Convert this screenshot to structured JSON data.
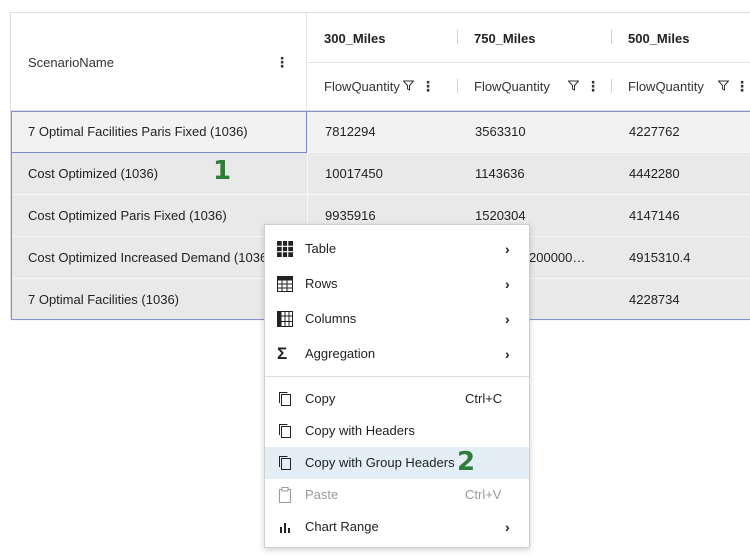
{
  "grid": {
    "name_header": "ScenarioName",
    "groups": [
      "300_Miles",
      "750_Miles",
      "500_Miles"
    ],
    "sub_header": "FlowQuantity",
    "rows": [
      [
        "7 Optimal Facilities Paris Fixed (1036)",
        "7812294",
        "3563310",
        "4227762"
      ],
      [
        "Cost Optimized (1036)",
        "10017450",
        "1143636",
        "4442280"
      ],
      [
        "Cost Optimized Paris Fixed (1036)",
        "9935916",
        "1520304",
        "4147146"
      ],
      [
        "Cost Optimized Increased Demand (1036)",
        "",
        "200000…",
        "4915310.4"
      ],
      [
        "7 Optimal Facilities (1036)",
        "",
        "",
        "4228734"
      ]
    ]
  },
  "badges": {
    "one": "1",
    "two": "2"
  },
  "context_menu": {
    "items": [
      {
        "label": "Table",
        "icon": "table-icon",
        "submenu": true
      },
      {
        "label": "Rows",
        "icon": "rows-icon",
        "submenu": true
      },
      {
        "label": "Columns",
        "icon": "columns-icon",
        "submenu": true
      },
      {
        "label": "Aggregation",
        "icon": "sigma-icon",
        "submenu": true
      },
      {
        "label": "Copy",
        "icon": "copy-icon",
        "shortcut": "Ctrl+C"
      },
      {
        "label": "Copy with Headers",
        "icon": "copy-icon"
      },
      {
        "label": "Copy with Group Headers",
        "icon": "copy-icon",
        "highlighted": true
      },
      {
        "label": "Paste",
        "icon": "paste-icon",
        "shortcut": "Ctrl+V",
        "disabled": true
      },
      {
        "label": "Chart Range",
        "icon": "bar-chart-icon",
        "submenu": true
      }
    ]
  },
  "colors": {
    "accent_border": "#7a85c8",
    "badge": "#2f7d3a",
    "highlight": "#e3eef7"
  }
}
